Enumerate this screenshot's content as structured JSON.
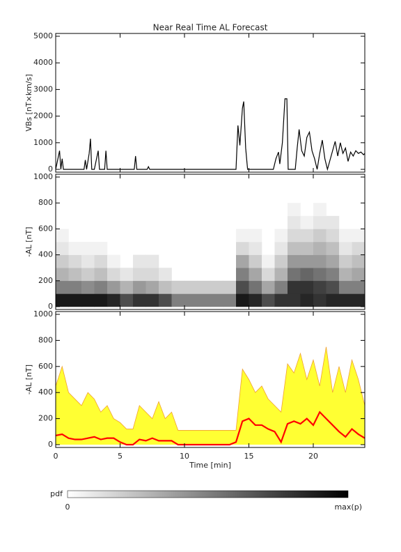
{
  "chart_data": [
    {
      "type": "line",
      "title": "Near Real Time AL Forecast",
      "ylabel": "VBs [nT×km/s]",
      "color": "#000000",
      "x": [
        0,
        0.3,
        0.4,
        0.5,
        0.6,
        1.5,
        2.2,
        2.3,
        2.4,
        2.6,
        2.7,
        2.8,
        3.0,
        3.3,
        3.4,
        3.8,
        3.9,
        4.0,
        6.1,
        6.2,
        6.3,
        7.1,
        7.2,
        7.3,
        14.0,
        14.15,
        14.3,
        14.5,
        14.6,
        14.75,
        14.9,
        16.9,
        17.1,
        17.3,
        17.4,
        17.6,
        17.8,
        17.95,
        18.05,
        18.6,
        18.75,
        18.9,
        19.1,
        19.3,
        19.5,
        19.7,
        19.9,
        20.1,
        20.3,
        20.5,
        20.7,
        20.9,
        21.1,
        21.3,
        21.5,
        21.7,
        21.9,
        22.1,
        22.3,
        22.5,
        22.7,
        22.9,
        23.1,
        23.3,
        23.5,
        23.7,
        23.9,
        24
      ],
      "values": [
        0,
        700,
        0,
        400,
        0,
        0,
        0,
        350,
        0,
        600,
        1150,
        0,
        0,
        700,
        0,
        0,
        700,
        0,
        0,
        500,
        0,
        0,
        100,
        0,
        0,
        1650,
        900,
        2300,
        2550,
        800,
        0,
        0,
        400,
        650,
        200,
        1000,
        2650,
        2650,
        0,
        0,
        800,
        1500,
        700,
        500,
        1200,
        1400,
        700,
        400,
        0,
        600,
        1100,
        400,
        0,
        350,
        700,
        1050,
        500,
        1000,
        600,
        800,
        300,
        650,
        500,
        700,
        600,
        650,
        550,
        600
      ],
      "xlim": [
        0,
        24
      ],
      "xticks": [
        0,
        5,
        10,
        15,
        20
      ],
      "ylim": [
        0,
        5000
      ],
      "yticks": [
        0,
        1000,
        2000,
        3000,
        4000,
        5000
      ]
    },
    {
      "type": "heatmap",
      "ylabel": "-AL [nT]",
      "xbins": [
        0,
        1,
        2,
        3,
        4,
        5,
        6,
        7,
        8,
        9,
        10,
        11,
        12,
        13,
        14,
        15,
        16,
        17,
        18,
        19,
        20,
        21,
        22,
        23,
        24
      ],
      "ybins": [
        0,
        100,
        200,
        300,
        400,
        500,
        600,
        700,
        800
      ],
      "z": [
        [
          0.9,
          0.5,
          0.3,
          0.2,
          0.1,
          0.05,
          0,
          0
        ],
        [
          0.9,
          0.5,
          0.25,
          0.15,
          0.05,
          0,
          0,
          0
        ],
        [
          0.9,
          0.45,
          0.2,
          0.1,
          0.05,
          0,
          0,
          0
        ],
        [
          0.9,
          0.5,
          0.25,
          0.15,
          0.05,
          0,
          0,
          0
        ],
        [
          0.85,
          0.4,
          0.15,
          0.05,
          0,
          0,
          0,
          0
        ],
        [
          0.7,
          0.3,
          0.1,
          0,
          0,
          0,
          0,
          0
        ],
        [
          0.8,
          0.4,
          0.15,
          0.1,
          0,
          0,
          0,
          0
        ],
        [
          0.8,
          0.35,
          0.15,
          0.1,
          0,
          0,
          0,
          0
        ],
        [
          0.7,
          0.25,
          0.1,
          0,
          0,
          0,
          0,
          0
        ],
        [
          0.5,
          0.2,
          0,
          0,
          0,
          0,
          0,
          0
        ],
        [
          0.5,
          0.2,
          0,
          0,
          0,
          0,
          0,
          0
        ],
        [
          0.5,
          0.2,
          0,
          0,
          0,
          0,
          0,
          0
        ],
        [
          0.5,
          0.2,
          0,
          0,
          0,
          0,
          0,
          0
        ],
        [
          0.5,
          0.2,
          0,
          0,
          0,
          0,
          0,
          0
        ],
        [
          0.9,
          0.7,
          0.5,
          0.35,
          0.15,
          0.05,
          0,
          0
        ],
        [
          0.85,
          0.55,
          0.35,
          0.2,
          0.1,
          0.05,
          0,
          0
        ],
        [
          0.7,
          0.35,
          0.15,
          0.05,
          0,
          0,
          0,
          0
        ],
        [
          0.8,
          0.5,
          0.3,
          0.2,
          0.1,
          0.05,
          0,
          0
        ],
        [
          0.8,
          0.8,
          0.55,
          0.4,
          0.25,
          0.15,
          0.1,
          0.05
        ],
        [
          0.85,
          0.8,
          0.6,
          0.4,
          0.25,
          0.15,
          0.05,
          0
        ],
        [
          0.8,
          0.75,
          0.55,
          0.4,
          0.3,
          0.2,
          0.1,
          0.05
        ],
        [
          0.85,
          0.7,
          0.5,
          0.35,
          0.25,
          0.15,
          0.1,
          0
        ],
        [
          0.85,
          0.5,
          0.3,
          0.2,
          0.1,
          0.05,
          0,
          0
        ],
        [
          0.85,
          0.5,
          0.35,
          0.25,
          0.15,
          0.05,
          0,
          0
        ]
      ],
      "xlim": [
        0,
        24
      ],
      "xticks": [
        0,
        5,
        10,
        15,
        20
      ],
      "ylim": [
        0,
        1000
      ],
      "yticks": [
        0,
        200,
        400,
        600,
        800,
        1000
      ]
    },
    {
      "type": "band",
      "ylabel": "-AL [nT]",
      "xlabel": "Time [min]",
      "x": [
        0,
        0.5,
        1,
        1.5,
        2,
        2.5,
        3,
        3.5,
        4,
        4.5,
        5,
        5.5,
        6,
        6.5,
        7,
        7.5,
        8,
        8.5,
        9,
        9.5,
        10,
        10.5,
        11,
        11.5,
        12,
        12.5,
        13,
        13.5,
        14,
        14.5,
        15,
        15.5,
        16,
        16.5,
        17,
        17.5,
        18,
        18.5,
        19,
        19.5,
        20,
        20.5,
        21,
        21.5,
        22,
        22.5,
        23,
        23.5,
        24
      ],
      "upper": [
        450,
        600,
        400,
        350,
        300,
        400,
        350,
        250,
        300,
        200,
        170,
        120,
        120,
        300,
        250,
        200,
        330,
        200,
        250,
        110,
        110,
        110,
        110,
        110,
        110,
        110,
        110,
        110,
        110,
        580,
        500,
        400,
        450,
        350,
        300,
        250,
        620,
        550,
        700,
        500,
        650,
        450,
        750,
        400,
        600,
        400,
        650,
        500,
        300
      ],
      "median": [
        70,
        80,
        50,
        40,
        40,
        50,
        60,
        40,
        50,
        50,
        20,
        0,
        0,
        40,
        30,
        50,
        30,
        30,
        30,
        0,
        0,
        0,
        0,
        0,
        0,
        0,
        0,
        0,
        20,
        180,
        200,
        150,
        150,
        120,
        100,
        20,
        160,
        180,
        160,
        200,
        150,
        250,
        200,
        150,
        100,
        60,
        120,
        80,
        50
      ],
      "band_color": "#ffff33",
      "edge_color": "#f0a030",
      "median_color": "#ff0000",
      "xlim": [
        0,
        24
      ],
      "xticks": [
        0,
        5,
        10,
        15,
        20
      ],
      "ylim": [
        0,
        1000
      ],
      "yticks": [
        0,
        200,
        400,
        600,
        800,
        1000
      ]
    }
  ],
  "colorbar": {
    "label": "pdf",
    "min_label": "0",
    "max_label": "max(p)"
  }
}
